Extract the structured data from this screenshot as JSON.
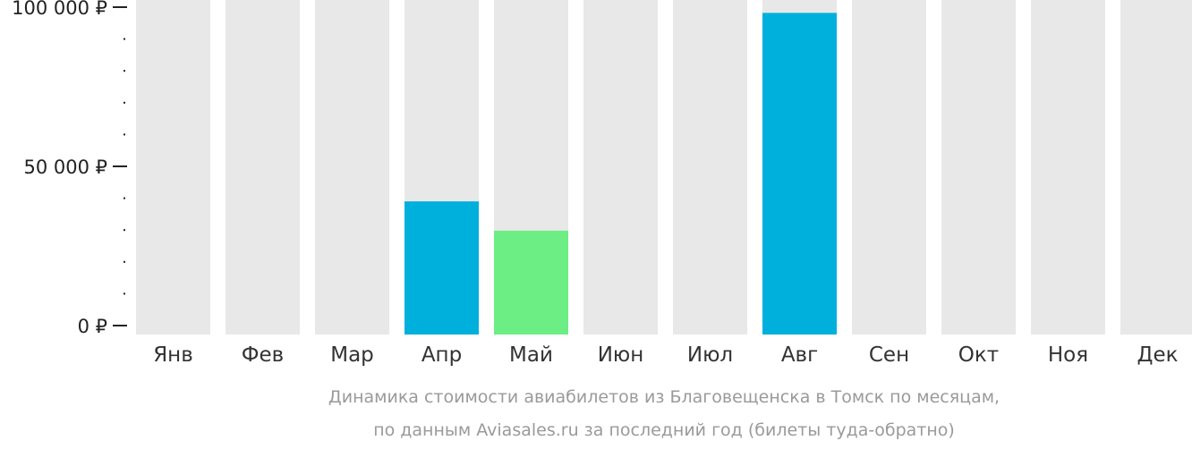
{
  "chart_data": {
    "type": "bar",
    "categories": [
      "Янв",
      "Фев",
      "Мар",
      "Апр",
      "Май",
      "Июн",
      "Июл",
      "Авг",
      "Сен",
      "Окт",
      "Ноя",
      "Дек"
    ],
    "values": [
      null,
      null,
      null,
      39000,
      29800,
      null,
      null,
      98200,
      null,
      null,
      null,
      null
    ],
    "highlight_index": 4,
    "ylim": [
      0,
      100000
    ],
    "y_tick_labels": [
      {
        "value": 0,
        "label": "0 ₽"
      },
      {
        "value": 50000,
        "label": "50 000 ₽"
      },
      {
        "value": 100000,
        "label": "100 000 ₽"
      }
    ],
    "y_minor_step": 10000,
    "caption_lines": [
      "Динамика стоимости авиабилетов из Благовещенска в Томск по месяцам,",
      "по данным Aviasales.ru за последний год (билеты туда-обратно)"
    ],
    "colors": {
      "background_bar": "#e8e8e8",
      "bar": "#00b0dc",
      "highlight_bar": "#6cee85",
      "axis": "#222222"
    }
  }
}
